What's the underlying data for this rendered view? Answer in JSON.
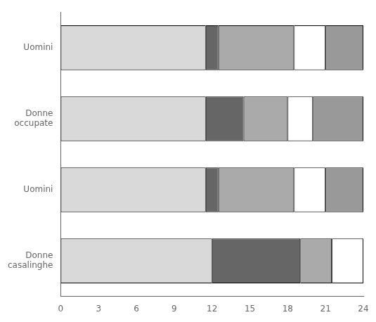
{
  "chart_data": {
    "type": "bar",
    "orientation": "horizontal",
    "stacked": true,
    "categories": [
      "Uomini",
      "Donne\noccupate",
      "Uomini",
      "Donne\ncasalinghe"
    ],
    "series": [
      {
        "color": "#d9d9d9",
        "values": [
          11.5,
          11.5,
          11.5,
          12.0
        ]
      },
      {
        "color": "#666666",
        "values": [
          1.0,
          3.0,
          1.0,
          7.0
        ]
      },
      {
        "color": "#aaaaaa",
        "values": [
          6.0,
          3.5,
          6.0,
          2.5
        ]
      },
      {
        "color": "#ffffff",
        "values": [
          2.5,
          2.0,
          2.5,
          2.5
        ]
      },
      {
        "color": "#999999",
        "values": [
          3.0,
          4.0,
          3.0,
          0.0
        ]
      }
    ],
    "xlim": [
      0,
      24
    ],
    "xticks": [
      0,
      3,
      6,
      9,
      12,
      15,
      18,
      21,
      24
    ],
    "grid": false
  }
}
